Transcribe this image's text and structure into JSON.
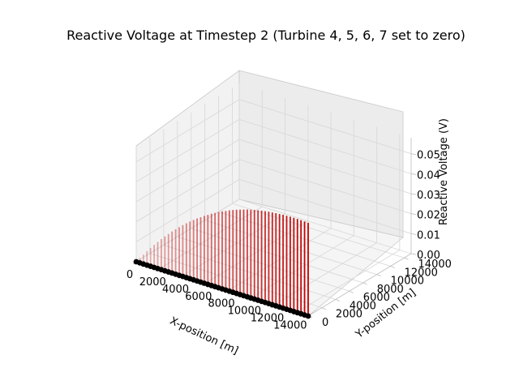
{
  "chart_data": {
    "type": "3d-stem",
    "title": "Reactive Voltage at Timestep 2 (Turbine 4, 5, 6, 7 set to zero)",
    "xlabel": "X-position [m]",
    "ylabel": "Y-position [m]",
    "zlabel": "Reactive Voltage (V)",
    "xlim": [
      0,
      15000
    ],
    "ylim": [
      0,
      15000
    ],
    "zlim": [
      0,
      0.058
    ],
    "x_ticks": [
      "0",
      "2000",
      "4000",
      "6000",
      "8000",
      "10000",
      "12000",
      "14000"
    ],
    "y_ticks": [
      "0",
      "2000",
      "4000",
      "6000",
      "8000",
      "10000",
      "12000",
      "14000"
    ],
    "z_ticks": [
      "0.00",
      "0.01",
      "0.02",
      "0.03",
      "0.04",
      "0.05"
    ],
    "grid": true,
    "stem_color": "#c00000",
    "marker_color": "#000000",
    "series": [
      {
        "x": [
          0,
          312.5,
          625,
          937.5,
          1250,
          1562.5,
          1875,
          2187.5,
          2500,
          2812.5,
          3125,
          3437.5,
          3750,
          4062.5,
          4375,
          4687.5,
          5000,
          5312.5,
          5625,
          5937.5,
          6250,
          6562.5,
          6875,
          7187.5,
          7500,
          7812.5,
          8125,
          8437.5,
          8750,
          9062.5,
          9375,
          9687.5,
          10000,
          10312.5,
          10625,
          10937.5,
          11250,
          11562.5,
          11875,
          12187.5,
          12500,
          12812.5,
          13125,
          13437.5,
          13750,
          14062.5,
          14375,
          14687.5,
          15000
        ],
        "y": [
          0,
          0,
          0,
          0,
          0,
          0,
          0,
          0,
          0,
          0,
          0,
          0,
          0,
          0,
          0,
          0,
          0,
          0,
          0,
          0,
          0,
          0,
          0,
          0,
          0,
          0,
          0,
          0,
          0,
          0,
          0,
          0,
          0,
          0,
          0,
          0,
          0,
          0,
          0,
          0,
          0,
          0,
          0,
          0,
          0,
          0,
          0,
          0,
          0
        ],
        "z": [
          0.0,
          0.0024,
          0.0047,
          0.007,
          0.0092,
          0.0113,
          0.0133,
          0.0153,
          0.0172,
          0.019,
          0.0208,
          0.0225,
          0.0241,
          0.0257,
          0.0272,
          0.0286,
          0.03,
          0.0313,
          0.0325,
          0.0337,
          0.0348,
          0.0359,
          0.0369,
          0.0379,
          0.0388,
          0.0396,
          0.0404,
          0.0412,
          0.0419,
          0.0425,
          0.0431,
          0.0437,
          0.0442,
          0.0446,
          0.045,
          0.0454,
          0.0457,
          0.046,
          0.0462,
          0.0464,
          0.0466,
          0.0467,
          0.0468,
          0.0469,
          0.0469,
          0.0469,
          0.0469,
          0.0468,
          0.0467
        ]
      }
    ]
  }
}
